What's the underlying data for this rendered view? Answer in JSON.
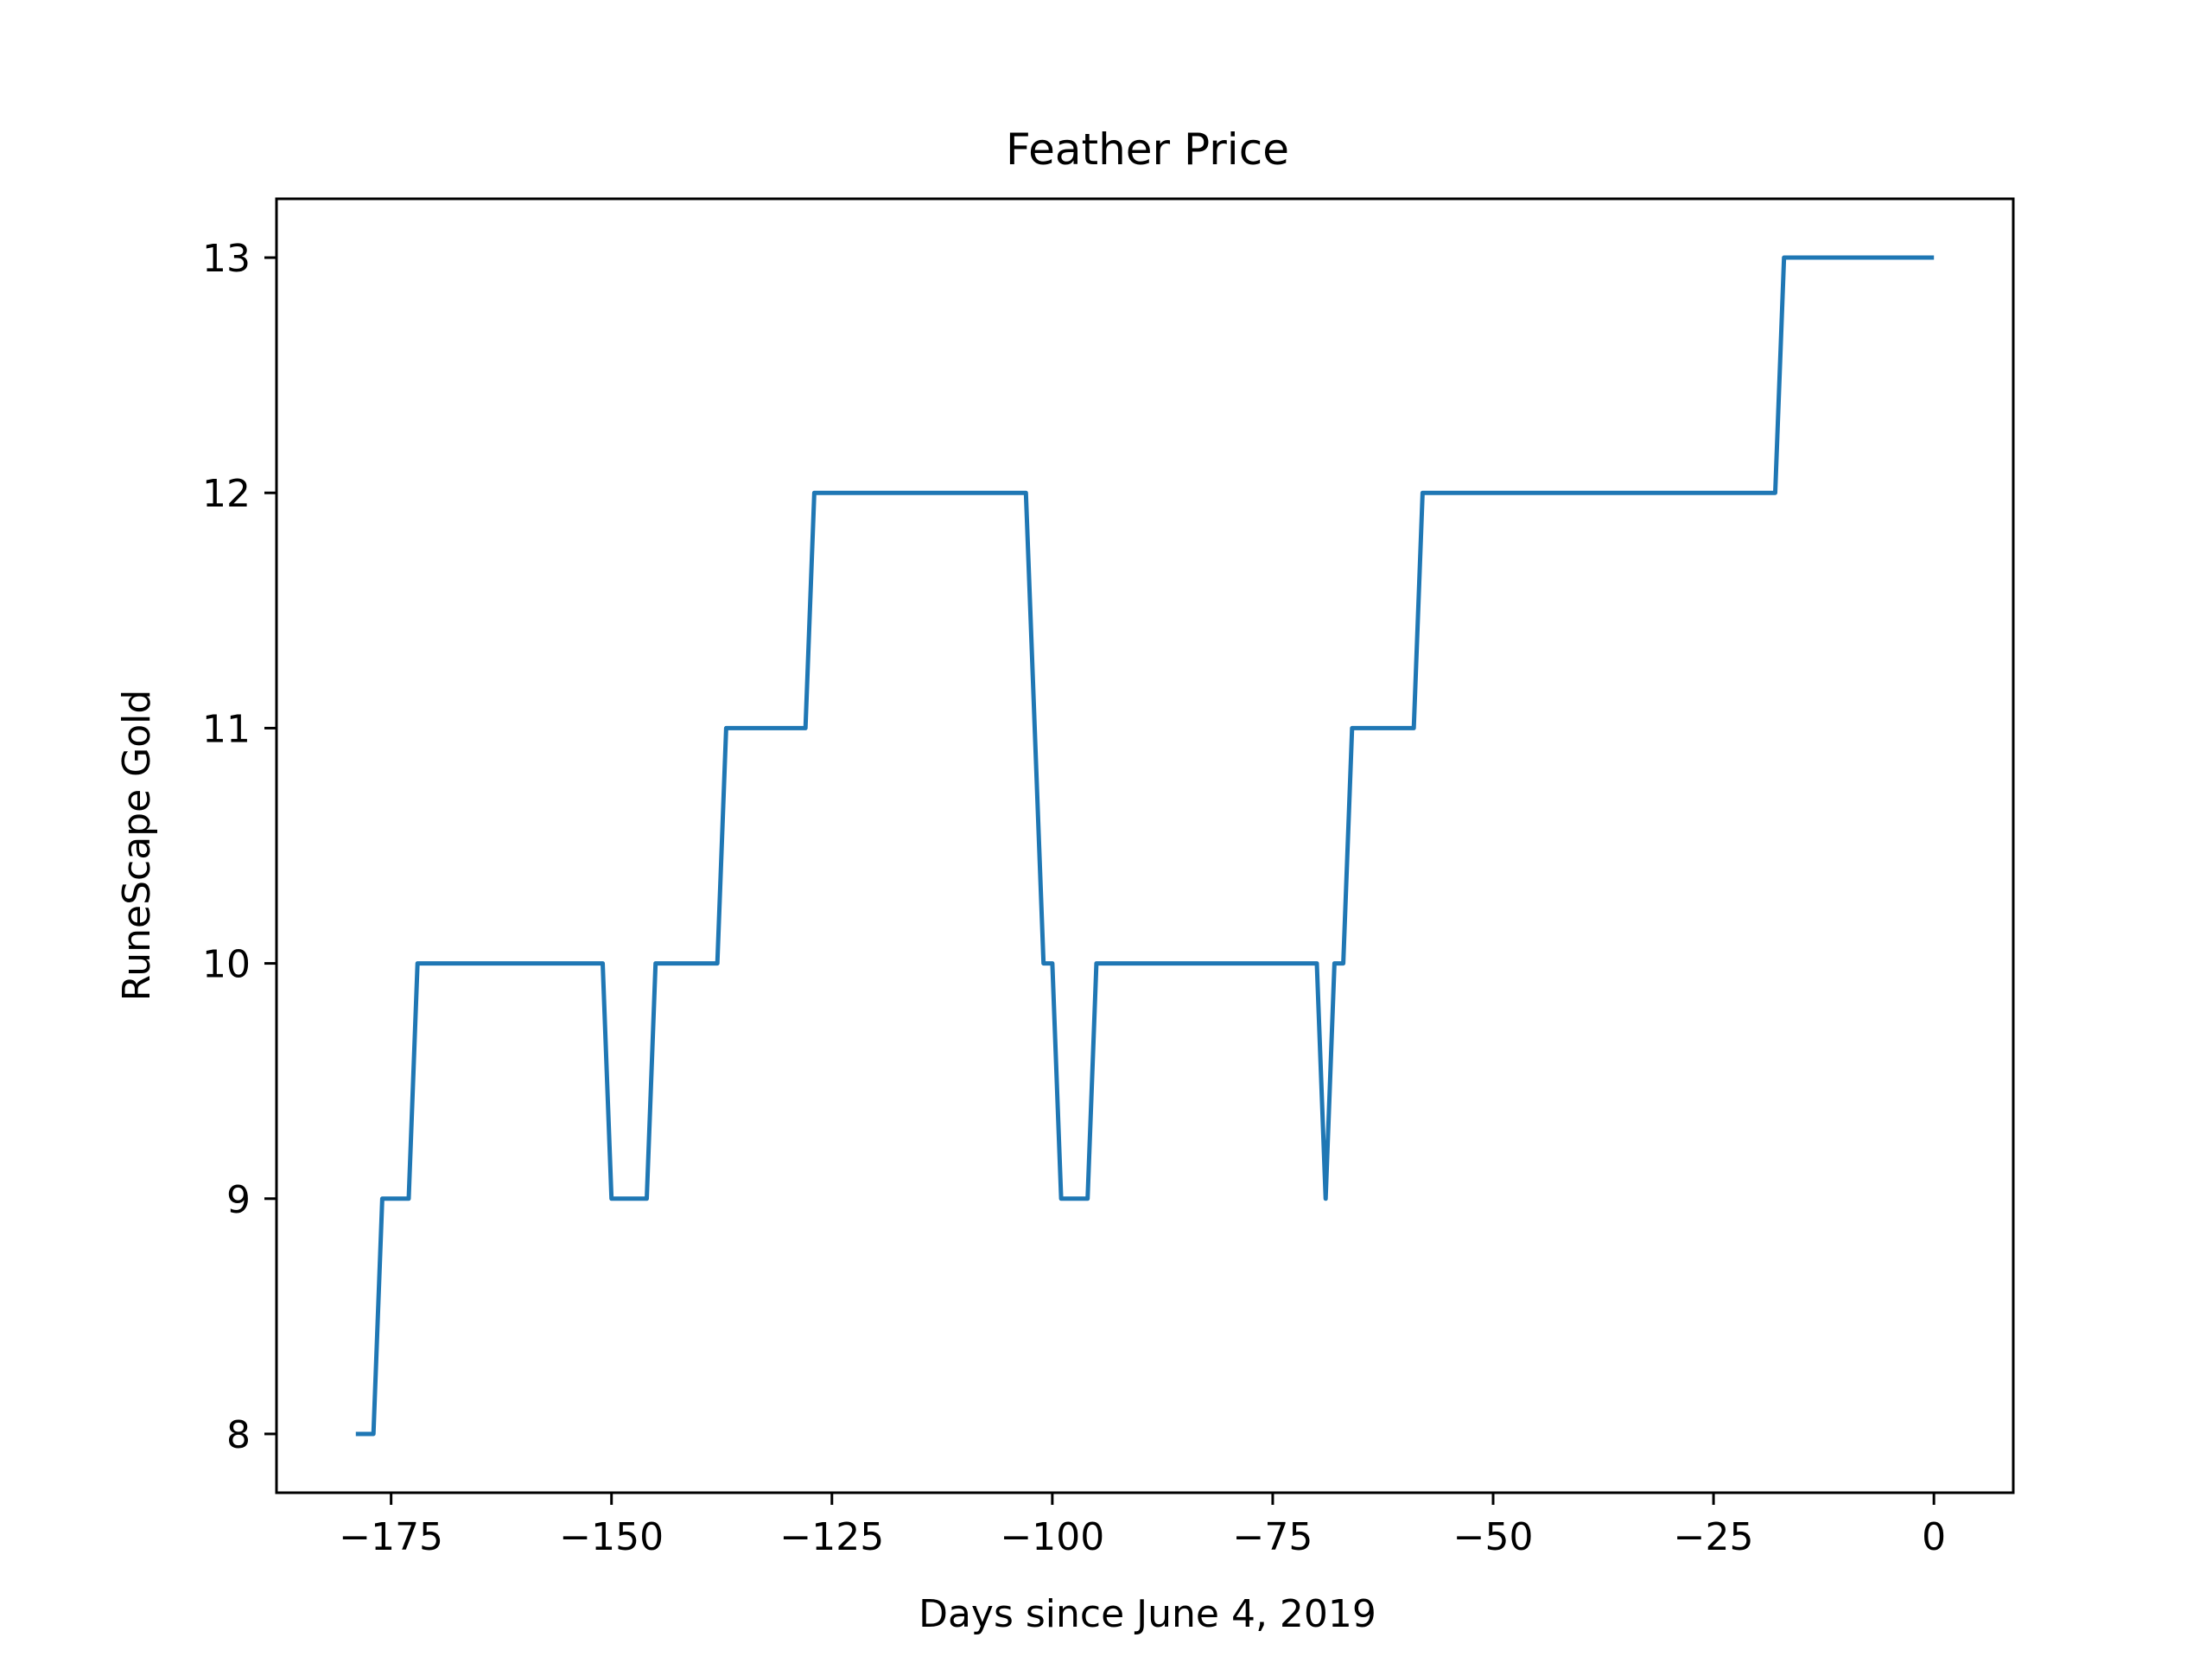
{
  "chart_data": {
    "type": "line",
    "title": "Feather Price",
    "xlabel": "Days since June 4, 2019",
    "ylabel": "RuneScape Gold",
    "xlim": [
      -188,
      9
    ],
    "ylim": [
      7.75,
      13.25
    ],
    "xticks": [
      -175,
      -150,
      -125,
      -100,
      -75,
      -50,
      -25,
      0
    ],
    "xtick_labels": [
      "−175",
      "−150",
      "−125",
      "−100",
      "−75",
      "−50",
      "−25",
      "0"
    ],
    "yticks": [
      8,
      9,
      10,
      11,
      12,
      13
    ],
    "ytick_labels": [
      "8",
      "9",
      "10",
      "11",
      "12",
      "13"
    ],
    "grid": false,
    "line_color": "#1f77b4",
    "series": [
      {
        "x": [
          -179,
          -178,
          -177,
          -176,
          -175,
          -174,
          -173,
          -172,
          -171,
          -151,
          -150,
          -149,
          -148,
          -147,
          -146,
          -145,
          -144,
          -139,
          -138,
          -137,
          -132,
          -129,
          -128,
          -127,
          -104,
          -103,
          -102,
          -101,
          -100,
          -99,
          -98,
          -97,
          -96,
          -95,
          -70,
          -69,
          -68,
          -67,
          -66,
          -60,
          -59,
          -58,
          -18,
          -17,
          0
        ],
        "y": [
          8,
          8,
          8,
          9,
          9,
          9,
          9,
          10,
          10,
          10,
          9,
          9,
          9,
          9,
          9,
          10,
          10,
          10,
          10,
          11,
          11,
          11,
          11,
          12,
          12,
          12,
          11,
          10,
          10,
          9,
          9,
          9,
          9,
          10,
          10,
          9,
          10,
          10,
          11,
          11,
          11,
          12,
          12,
          13,
          13
        ]
      }
    ]
  }
}
